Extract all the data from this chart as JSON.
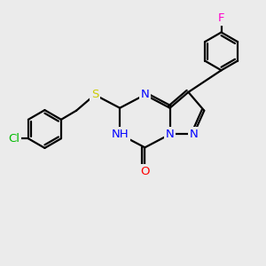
{
  "bg_color": "#ebebeb",
  "bond_color": "#000000",
  "bond_width": 1.6,
  "atom_colors": {
    "N": "#0000ff",
    "O": "#ff0000",
    "S": "#cccc00",
    "Cl": "#00bb00",
    "F": "#ff00cc",
    "C": "#000000"
  },
  "font_size": 9.5
}
